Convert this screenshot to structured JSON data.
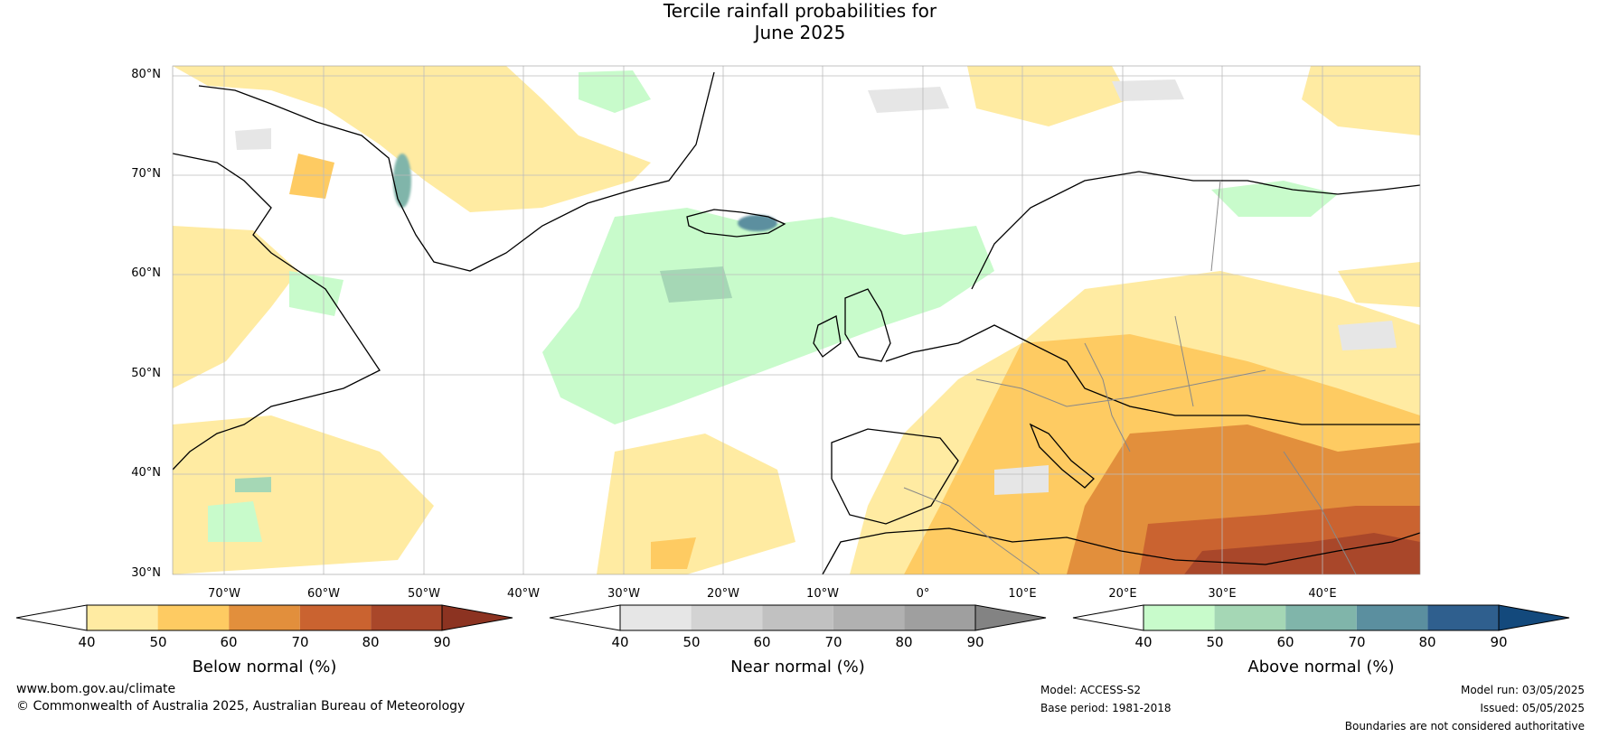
{
  "title": {
    "line1": "Tercile rainfall probabilities for",
    "line2": "June 2025"
  },
  "map": {
    "lat_labels": [
      "80°N",
      "70°N",
      "60°N",
      "50°N",
      "40°N",
      "30°N"
    ],
    "lon_labels": [
      "70°W",
      "60°W",
      "50°W",
      "40°W",
      "30°W",
      "20°W",
      "10°W",
      "0°",
      "10°E",
      "20°E",
      "30°E",
      "40°E"
    ],
    "coastline_color": "#000000",
    "border_color": "#888888"
  },
  "colorbars": [
    {
      "title": "Below normal (%)",
      "ticks": [
        "40",
        "50",
        "60",
        "70",
        "80",
        "90"
      ],
      "colors": [
        "#ffffff",
        "#ffeba2",
        "#fecb62",
        "#e28f3c",
        "#ca6330",
        "#a9472a",
        "#8c3321"
      ]
    },
    {
      "title": "Near normal (%)",
      "ticks": [
        "40",
        "50",
        "60",
        "70",
        "80",
        "90"
      ],
      "colors": [
        "#ffffff",
        "#e6e6e6",
        "#d3d3d3",
        "#c1c1c1",
        "#b1b1b1",
        "#9f9f9f",
        "#838383"
      ]
    },
    {
      "title": "Above normal (%)",
      "ticks": [
        "40",
        "50",
        "60",
        "70",
        "80",
        "90"
      ],
      "colors": [
        "#ffffff",
        "#c8fbcb",
        "#a5d7b5",
        "#80b5aa",
        "#5b8f9f",
        "#2f5f8e",
        "#13497c"
      ]
    }
  ],
  "footer": {
    "website": "www.bom.gov.au/climate",
    "copyright": "© Commonwealth of Australia 2025, Australian Bureau of Meteorology",
    "model": "Model: ACCESS-S2",
    "base_period": "Base period: 1981-2018",
    "model_run": "Model run: 03/05/2025",
    "issued": "Issued: 05/05/2025",
    "disclaimer": "Boundaries are not considered authoritative"
  }
}
